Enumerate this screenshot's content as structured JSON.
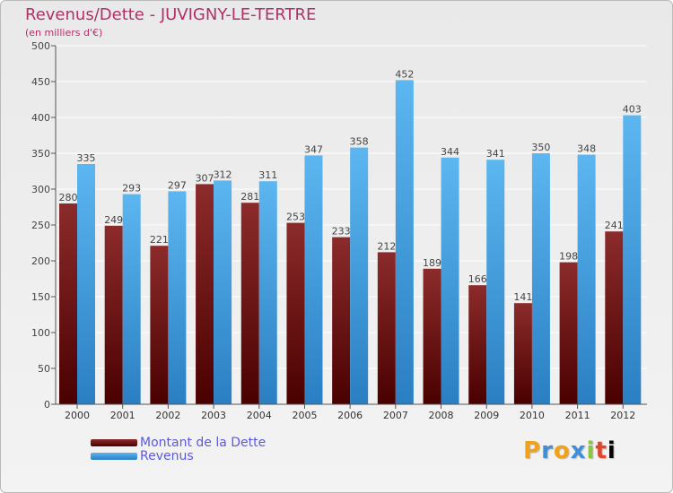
{
  "chart_data": {
    "type": "bar",
    "title": "Revenus/Dette - JUVIGNY-LE-TERTRE",
    "subtitle": "(en milliers d'€)",
    "categories": [
      "2000",
      "2001",
      "2002",
      "2003",
      "2004",
      "2005",
      "2006",
      "2007",
      "2008",
      "2009",
      "2010",
      "2011",
      "2012"
    ],
    "series": [
      {
        "name": "Montant de la Dette",
        "color": "#7a1e1e",
        "values": [
          280,
          249,
          221,
          307,
          281,
          253,
          233,
          212,
          189,
          166,
          141,
          198,
          241
        ]
      },
      {
        "name": "Revenus",
        "color": "#3c9ee0",
        "values": [
          335,
          293,
          297,
          312,
          311,
          347,
          358,
          452,
          344,
          341,
          350,
          348,
          403
        ]
      }
    ],
    "ylim": [
      0,
      500
    ],
    "yticks": [
      0,
      50,
      100,
      150,
      200,
      250,
      300,
      350,
      400,
      450,
      500
    ],
    "grid": true,
    "legend": "bottom-left"
  },
  "logo": {
    "letters": [
      "P",
      "r",
      "o",
      "x",
      "i",
      "t",
      "i"
    ]
  }
}
